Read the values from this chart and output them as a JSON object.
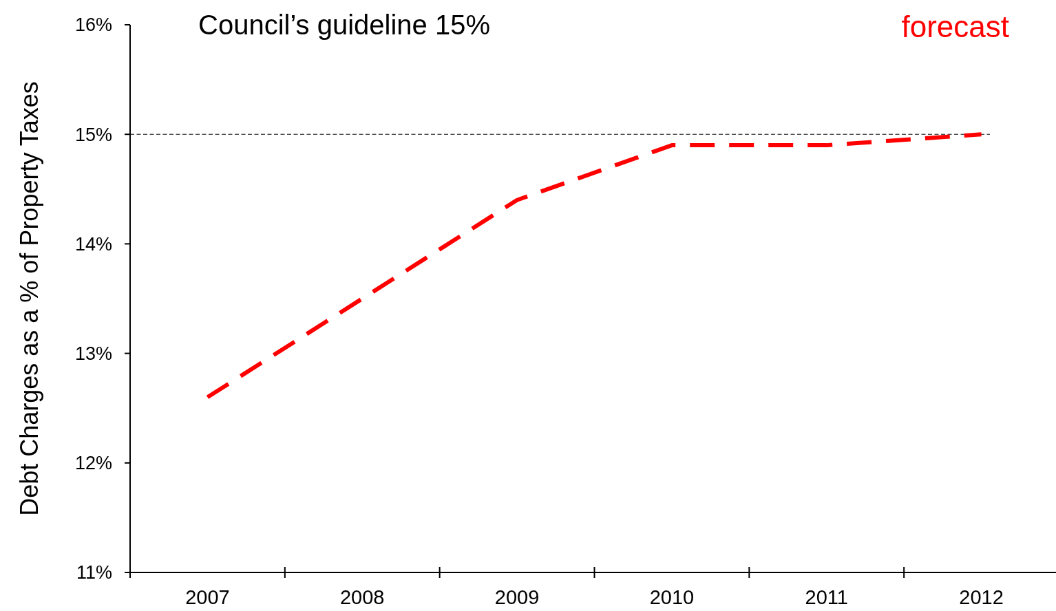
{
  "chart_data": {
    "type": "line",
    "ylabel": "Debt Charges as a % of Property Taxes",
    "categories": [
      "2007",
      "2008",
      "2009",
      "2010",
      "2011",
      "2012"
    ],
    "series": [
      {
        "color": "#ff0000",
        "values": [
          12.6,
          13.5,
          14.4,
          14.9,
          14.9,
          15.0
        ]
      }
    ],
    "ylim": [
      11,
      16
    ],
    "yticks": [
      {
        "value": 11,
        "label": "11%"
      },
      {
        "value": 12,
        "label": "12%"
      },
      {
        "value": 13,
        "label": "13%"
      },
      {
        "value": 14,
        "label": "14%"
      },
      {
        "value": 15,
        "label": "15%"
      },
      {
        "value": 16,
        "label": "16%"
      }
    ],
    "ref_lines": [
      {
        "axis": "y",
        "value": 15,
        "label": "Council’s guideline 15%",
        "color": "#000000",
        "line_style": "dashed"
      }
    ],
    "annotations": [
      "forecast"
    ],
    "line_style": "dashed",
    "marker": "none",
    "grid": false
  }
}
